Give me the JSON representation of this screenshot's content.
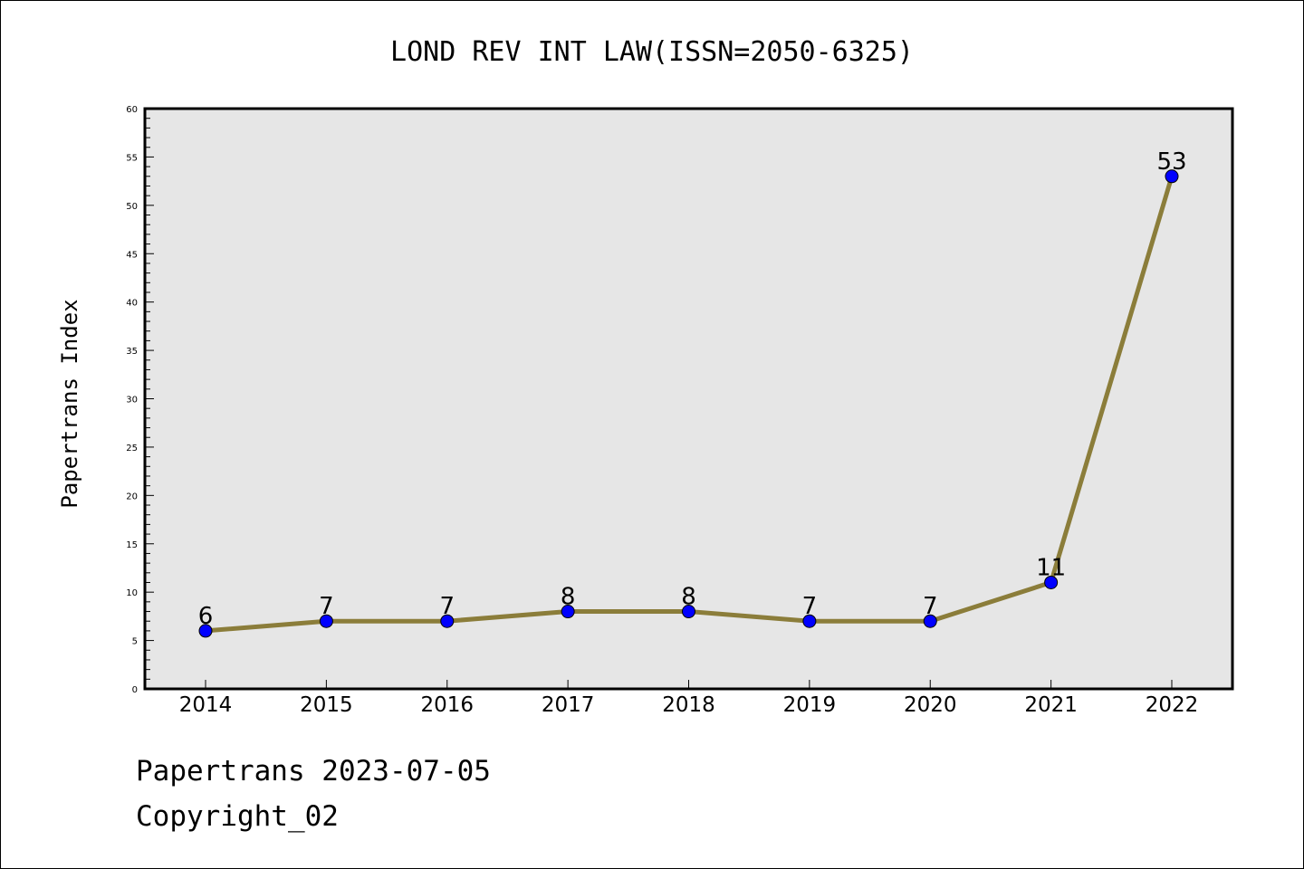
{
  "chart_data": {
    "type": "line",
    "title": "LOND REV INT LAW(ISSN=2050-6325)",
    "xlabel": "",
    "ylabel": "Papertrans Index",
    "categories": [
      "2014",
      "2015",
      "2016",
      "2017",
      "2018",
      "2019",
      "2020",
      "2021",
      "2022"
    ],
    "series": [
      {
        "values": [
          6,
          7,
          7,
          8,
          8,
          7,
          7,
          11,
          53
        ],
        "line_color": "#8B7D3A",
        "marker_color": "#0000FF"
      }
    ],
    "ylim": [
      0,
      60
    ],
    "yticks": [
      0,
      5,
      10,
      15,
      20,
      25,
      30,
      35,
      40,
      45,
      50,
      55,
      60
    ],
    "plot_background": "#E6E6E6",
    "grid": false,
    "legend": "none"
  },
  "footer": {
    "date_line": "Papertrans 2023-07-05",
    "copyright": "Copyright_02"
  }
}
